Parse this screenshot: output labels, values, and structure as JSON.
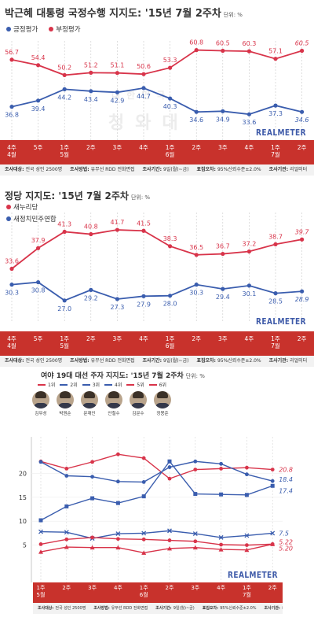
{
  "colors": {
    "red": "#d8344a",
    "blue": "#3a5dae",
    "bar": "#c8322c"
  },
  "watermark": {
    "top_text": "대한민국",
    "main_text": "청와대"
  },
  "panel1": {
    "title": "박근혜 대통령 국정수행 지지도: '15년 7월 2주차",
    "unit": "단위: %",
    "brand": "REALMETER",
    "footer": [
      {
        "k": "조사대상:",
        "v": "전국 성인 2500명"
      },
      {
        "k": "조사방법:",
        "v": "유무선 RDD 전화면접"
      },
      {
        "k": "조사기간:",
        "v": "9일(월)~금)"
      },
      {
        "k": "표집오차:",
        "v": "95%신뢰수준±2.0%"
      },
      {
        "k": "조사기관:",
        "v": "리얼미터"
      }
    ]
  },
  "panel2": {
    "title": "정당 지지도: '15년 7월 2주차",
    "unit": "단위: %",
    "brand": "REALMETER",
    "footer": [
      {
        "k": "조사대상:",
        "v": "전국 성인 2500명"
      },
      {
        "k": "조사방법:",
        "v": "유무선 RDD 전화면접"
      },
      {
        "k": "조사기간:",
        "v": "9일(월)~금)"
      },
      {
        "k": "표집오차:",
        "v": "95%신뢰수준±2.0%"
      },
      {
        "k": "조사기관:",
        "v": "리얼미터"
      }
    ]
  },
  "panel3": {
    "title": "여야 19대 대선 주자 지지도: '15년 7월 2주차",
    "unit": "단위: %",
    "brand": "REALMETER",
    "candidates": [
      "김무성",
      "박원순",
      "문재인",
      "안철수",
      "김문수",
      "정몽준"
    ],
    "footer": [
      {
        "k": "조사대상:",
        "v": "전국 성인 2500명"
      },
      {
        "k": "조사방법:",
        "v": "유무선 RDD 전화면접"
      },
      {
        "k": "조사기간:",
        "v": "9일(월)~금)"
      },
      {
        "k": "표집오차:",
        "v": "95%신뢰수준±2.0%"
      },
      {
        "k": "조사기관:",
        "v": "리얼미터"
      }
    ]
  },
  "chart_data": [
    {
      "type": "line",
      "title": "박근혜 대통령 국정수행 지지도: '15년 7월 2주차",
      "categories": [
        "4주 4월",
        "5주",
        "1주 5월",
        "2주",
        "3주",
        "4주",
        "1주 6월",
        "2주",
        "3주",
        "4주",
        "1주 7월",
        "2주"
      ],
      "series": [
        {
          "name": "긍정평가",
          "color": "#3a5dae",
          "values": [
            36.8,
            39.4,
            44.2,
            43.4,
            42.9,
            44.7,
            40.3,
            34.6,
            34.9,
            33.6,
            37.3,
            34.6
          ]
        },
        {
          "name": "부정평가",
          "color": "#d8344a",
          "values": [
            56.7,
            54.4,
            50.2,
            51.2,
            51.1,
            50.6,
            53.3,
            60.8,
            60.5,
            60.3,
            57.1,
            60.5
          ]
        }
      ],
      "ylim": [
        30,
        65
      ]
    },
    {
      "type": "line",
      "title": "정당 지지도: '15년 7월 2주차",
      "categories": [
        "4주 4월",
        "5주",
        "1주 5월",
        "2주",
        "3주",
        "4주",
        "1주 6월",
        "2주",
        "3주",
        "4주",
        "1주 7월",
        "2주"
      ],
      "series": [
        {
          "name": "새누리당",
          "color": "#d8344a",
          "values": [
            33.6,
            37.9,
            41.3,
            40.8,
            41.7,
            41.5,
            38.3,
            36.5,
            36.7,
            37.2,
            38.7,
            39.7
          ]
        },
        {
          "name": "새정치민주연합",
          "color": "#3a5dae",
          "values": [
            30.3,
            30.8,
            27.0,
            29.2,
            27.3,
            27.9,
            28.0,
            30.3,
            29.4,
            30.1,
            28.5,
            28.9
          ]
        }
      ],
      "ylim": [
        24,
        45
      ]
    },
    {
      "type": "line",
      "title": "여야 19대 대선 주자 지지도: '15년 7월 2주차",
      "categories": [
        "1주 5월",
        "2주",
        "3주",
        "4주",
        "1주 6월",
        "2주",
        "3주",
        "4주",
        "1주 7월",
        "2주"
      ],
      "series": [
        {
          "name": "1위",
          "color": "#d8344a",
          "marker": "circle",
          "values": [
            22.5,
            21.0,
            22.4,
            24.0,
            23.2,
            18.9,
            20.8,
            21.0,
            21.2,
            20.8
          ]
        },
        {
          "name": "2위",
          "color": "#3a5dae",
          "marker": "circle",
          "values": [
            22.4,
            19.5,
            19.3,
            18.3,
            18.2,
            21.3,
            22.5,
            22.0,
            19.8,
            18.4
          ]
        },
        {
          "name": "3위",
          "color": "#3a5dae",
          "marker": "square",
          "values": [
            10.2,
            13.1,
            14.8,
            13.8,
            15.2,
            22.5,
            15.7,
            15.6,
            15.5,
            17.4
          ]
        },
        {
          "name": "4위",
          "color": "#3a5dae",
          "marker": "x",
          "values": [
            7.8,
            7.7,
            6.4,
            7.4,
            7.5,
            8.0,
            7.4,
            6.6,
            7.0,
            7.5
          ]
        },
        {
          "name": "5위",
          "color": "#d8344a",
          "marker": "circle",
          "values": [
            5.2,
            6.2,
            6.6,
            6.3,
            6.2,
            6.0,
            5.8,
            5.1,
            5.0,
            5.22
          ]
        },
        {
          "name": "6위",
          "color": "#d8344a",
          "marker": "triangle",
          "values": [
            3.6,
            4.6,
            4.5,
            4.5,
            3.4,
            4.3,
            4.5,
            4.1,
            4.0,
            5.2
          ]
        }
      ],
      "end_labels": [
        "20.8",
        "18.4",
        "17.4",
        "7.5",
        "5.22",
        "5.20"
      ],
      "yticks": [
        5,
        10,
        15,
        20
      ],
      "ylim": [
        0,
        26
      ]
    }
  ]
}
